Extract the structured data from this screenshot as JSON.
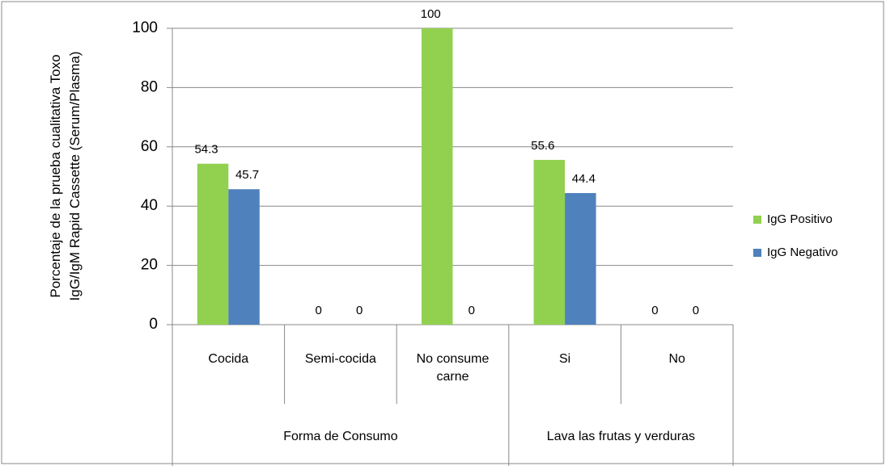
{
  "chart_data": {
    "type": "bar",
    "ylabel": [
      "Porcentaje de la prueba  cualitativa Toxo",
      "IgG/IgM Rapid Cassette (Serum/Plasma)"
    ],
    "groups": [
      {
        "name": "Forma de Consumo",
        "categories": [
          "Cocida",
          "Semi-cocida",
          "No consume carne"
        ]
      },
      {
        "name": "Lava las frutas y verduras",
        "categories": [
          "Si",
          "No"
        ]
      }
    ],
    "series": [
      {
        "name": "IgG Positivo",
        "color": "#92d050",
        "values": [
          54.3,
          0,
          100,
          55.6,
          0
        ]
      },
      {
        "name": "IgG Negativo",
        "color": "#4f81bd",
        "values": [
          45.7,
          0,
          0,
          44.4,
          0
        ]
      }
    ],
    "ylim": [
      0,
      100
    ],
    "yticks": [
      0,
      20,
      40,
      60,
      80,
      100
    ],
    "grid": true,
    "legend": "right"
  }
}
